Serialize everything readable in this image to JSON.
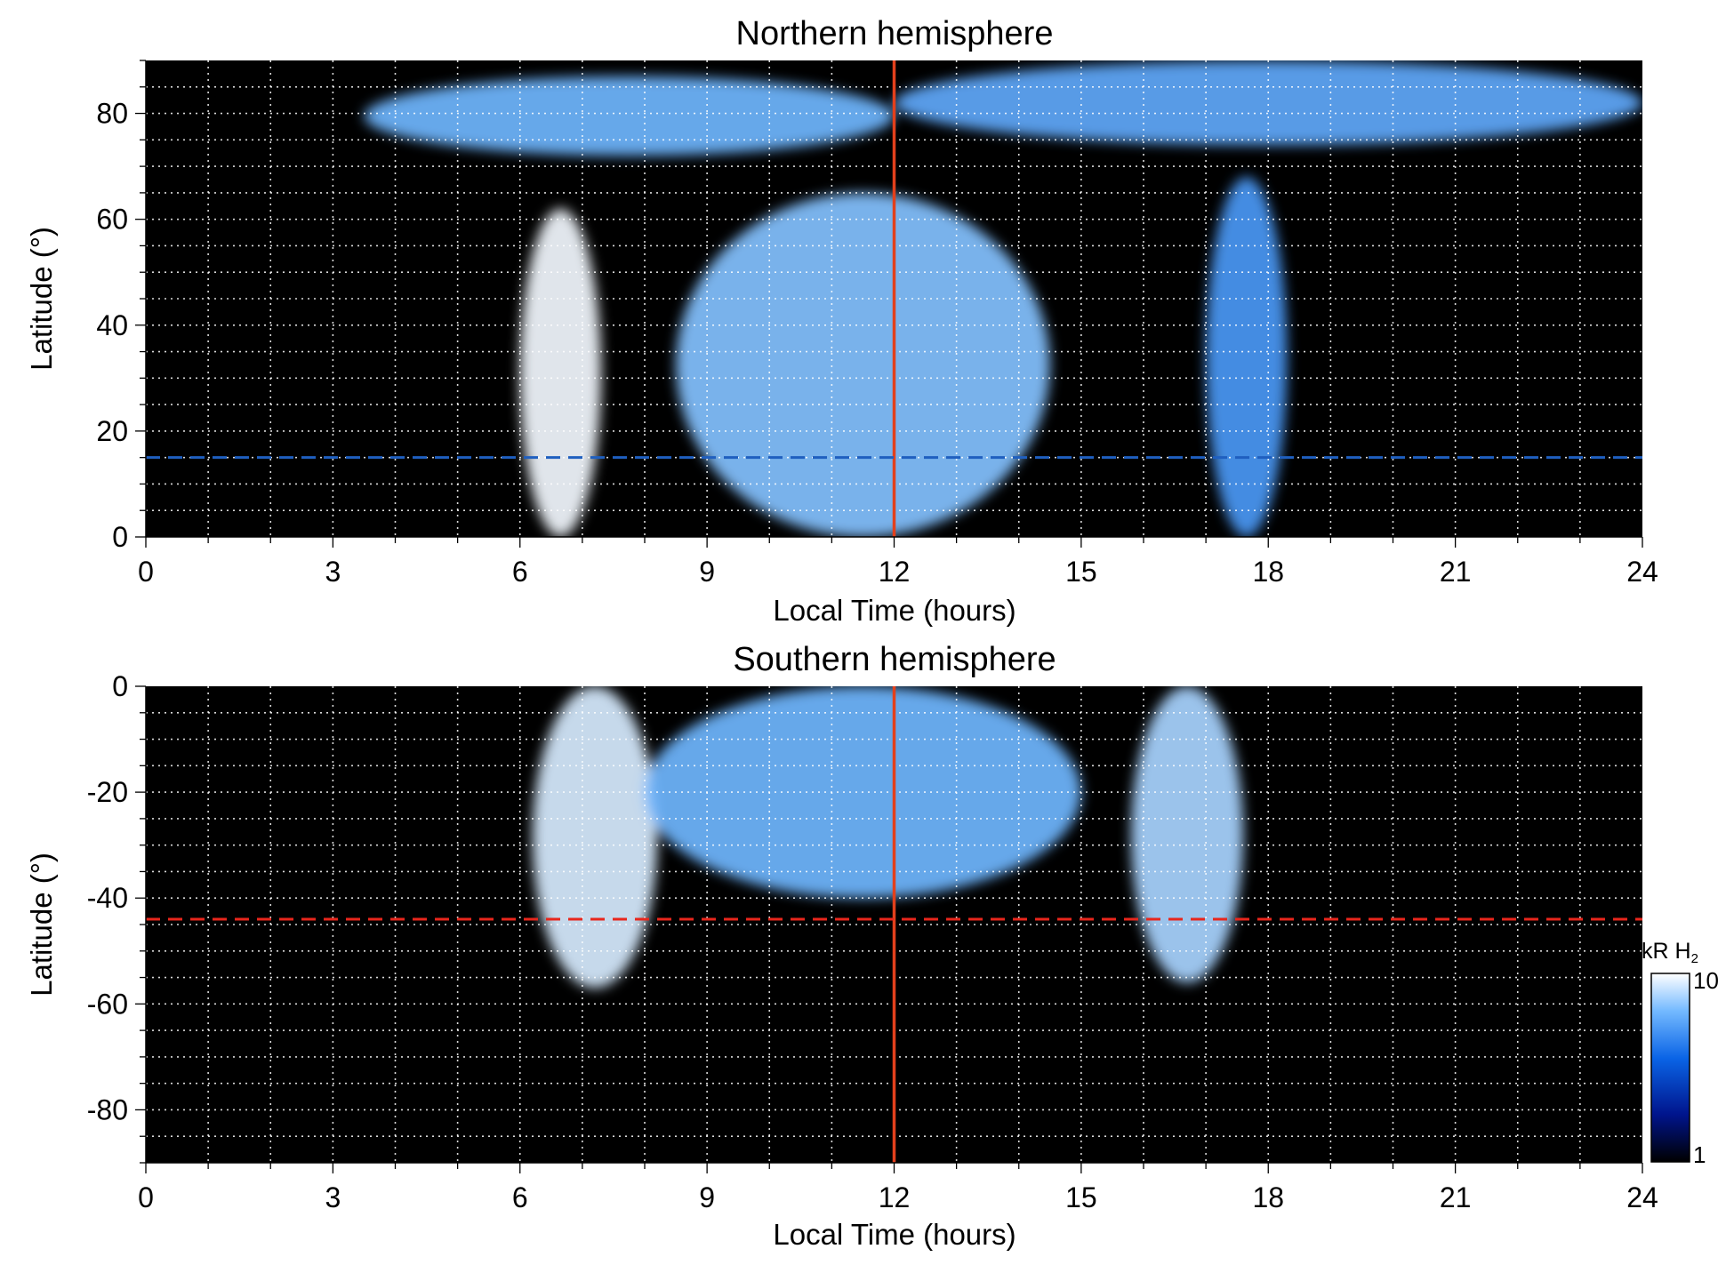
{
  "chart_data": [
    {
      "type": "heatmap",
      "title": "Northern hemisphere",
      "xlabel": "Local Time (hours)",
      "ylabel": "Latitude (°)",
      "xlim": [
        0,
        24
      ],
      "ylim": [
        0,
        90
      ],
      "xticks": [
        "0",
        "3",
        "6",
        "9",
        "12",
        "15",
        "18",
        "21",
        "24"
      ],
      "yticks": [
        "0",
        "20",
        "40",
        "60",
        "80"
      ],
      "grid": true,
      "background_color": "#000000",
      "vertical_reference_line": {
        "x": 12,
        "color": "#e2401c"
      },
      "horizontal_reference_line": {
        "y": 15,
        "color": "#1f5fbf",
        "style": "dashed"
      },
      "features": [
        {
          "name": "dawn band",
          "lt_range": [
            6.0,
            7.3
          ],
          "lat_range": [
            0,
            62
          ],
          "intensity": 9.5
        },
        {
          "name": "dusk band",
          "lt_range": [
            17.0,
            18.3
          ],
          "lat_range": [
            0,
            68
          ],
          "intensity": 4.5
        },
        {
          "name": "polar arc west",
          "lt_range": [
            3.5,
            12.0
          ],
          "lat_range": [
            72,
            87
          ],
          "intensity": 5.5
        },
        {
          "name": "polar arc east",
          "lt_range": [
            12.0,
            24.0
          ],
          "lat_range": [
            74,
            90
          ],
          "intensity": 5.0
        },
        {
          "name": "noon patches",
          "lt_range": [
            8.5,
            14.5
          ],
          "lat_range": [
            0,
            65
          ],
          "intensity": 6.0
        }
      ]
    },
    {
      "type": "heatmap",
      "title": "Southern hemisphere",
      "xlabel": "Local Time (hours)",
      "ylabel": "Latitude (°)",
      "xlim": [
        0,
        24
      ],
      "ylim": [
        -90,
        0
      ],
      "xticks": [
        "0",
        "3",
        "6",
        "9",
        "12",
        "15",
        "18",
        "21",
        "24"
      ],
      "yticks": [
        "0",
        "-20",
        "-40",
        "-60",
        "-80"
      ],
      "grid": true,
      "background_color": "#000000",
      "vertical_reference_line": {
        "x": 12,
        "color": "#e2401c"
      },
      "horizontal_reference_line": {
        "y": -44,
        "color": "#e8261c",
        "style": "dashed"
      },
      "features": [
        {
          "name": "dawn band",
          "lt_range": [
            6.2,
            8.2
          ],
          "lat_range": [
            -57,
            0
          ],
          "intensity": 8.5
        },
        {
          "name": "dusk band",
          "lt_range": [
            15.8,
            17.6
          ],
          "lat_range": [
            -56,
            0
          ],
          "intensity": 7.0
        },
        {
          "name": "noon patches",
          "lt_range": [
            8.0,
            15.0
          ],
          "lat_range": [
            -40,
            0
          ],
          "intensity": 5.5
        }
      ]
    }
  ],
  "colorbar": {
    "label_main": "kR H",
    "label_sub": "2",
    "min_label": "1",
    "max_label": "10",
    "scale": "log",
    "colors": [
      "#000000",
      "#00148c",
      "#0a64e6",
      "#73b9ff",
      "#ffffff"
    ]
  }
}
